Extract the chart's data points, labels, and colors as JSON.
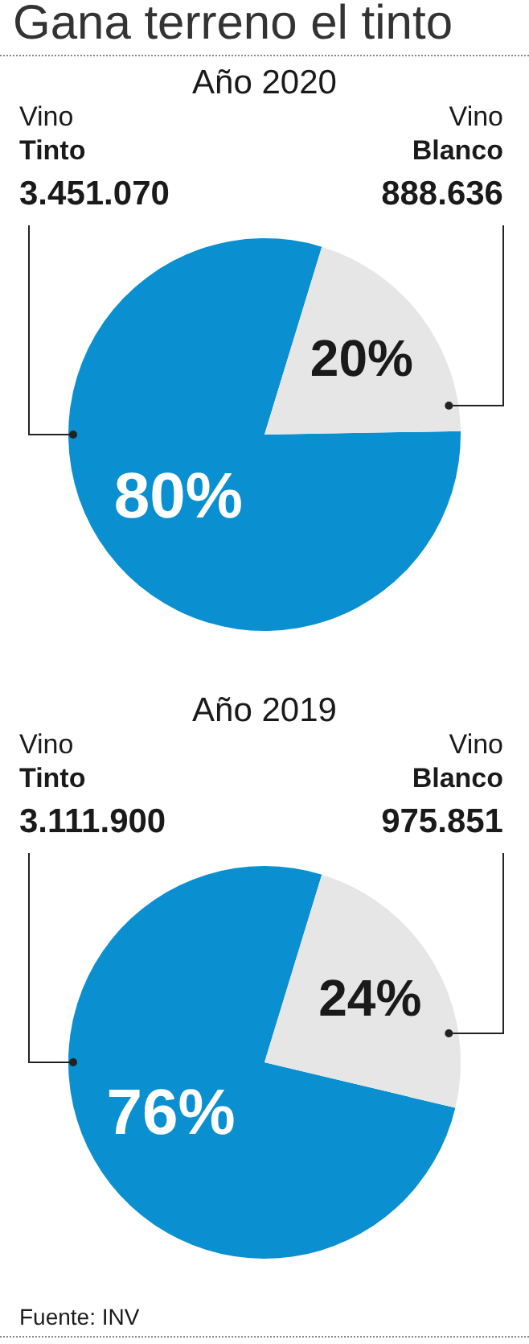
{
  "chart_data": [
    {
      "type": "pie",
      "title": "Gana terreno el tinto",
      "subtitle": "Año 2020",
      "categories": [
        "Vino Tinto",
        "Vino Blanco"
      ],
      "values": [
        80,
        20
      ],
      "colors": [
        "#0a8fd1",
        "#e6e6e6"
      ],
      "value_labels": [
        "80%",
        "20%"
      ],
      "legend": false,
      "annotations": [
        {
          "text": "3.451.070",
          "x": "Vino Tinto"
        },
        {
          "text": "888.636",
          "x": "Vino Blanco"
        }
      ]
    },
    {
      "type": "pie",
      "subtitle": "Año 2019",
      "categories": [
        "Vino Tinto",
        "Vino Blanco"
      ],
      "values": [
        76,
        24
      ],
      "colors": [
        "#0a8fd1",
        "#e6e6e6"
      ],
      "value_labels": [
        "76%",
        "24%"
      ],
      "legend": false,
      "annotations": [
        {
          "text": "3.111.900",
          "x": "Vino Tinto"
        },
        {
          "text": "975.851",
          "x": "Vino Blanco"
        },
        "Fuente: INV"
      ]
    }
  ]
}
